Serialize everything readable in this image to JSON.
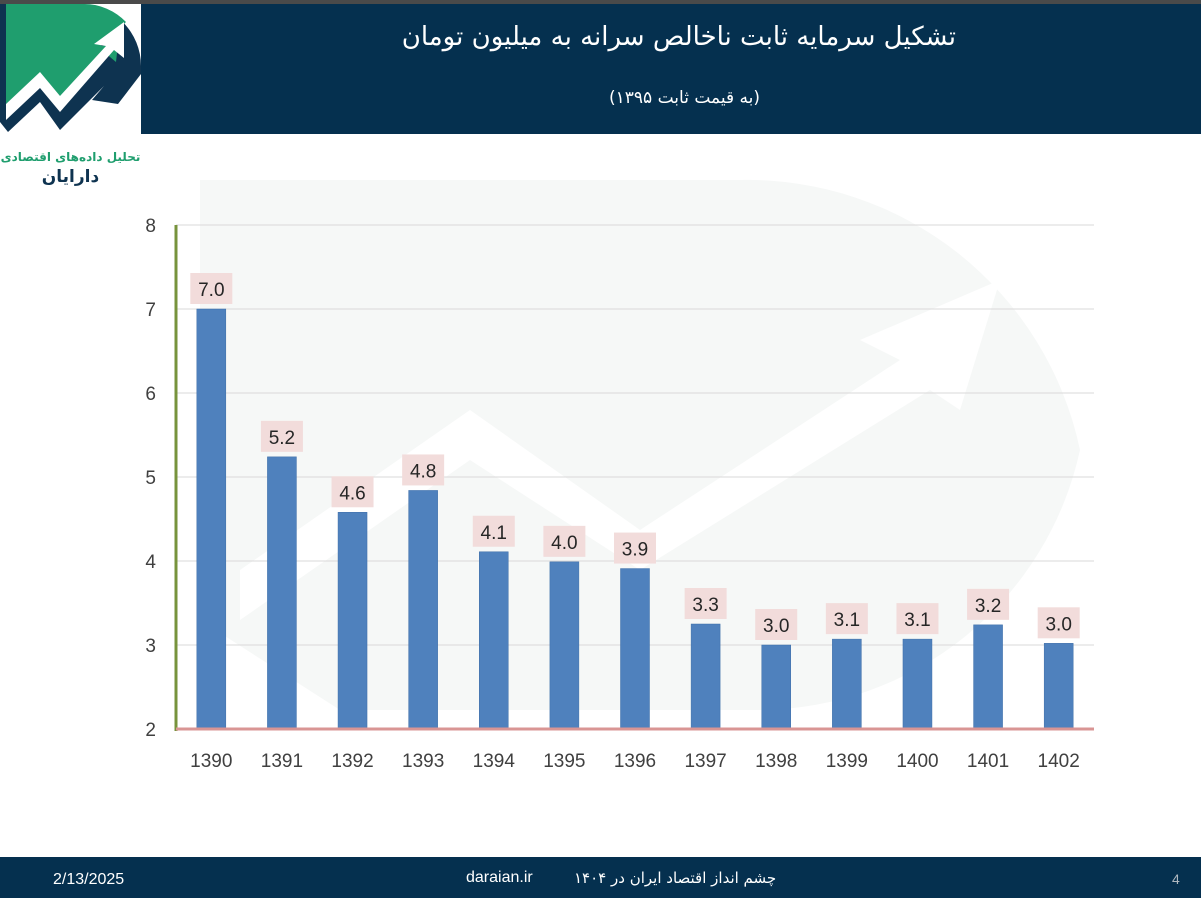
{
  "header": {
    "title": "تشکیل سرمایه ثابت ناخالص سرانه به میلیون تومان",
    "subtitle": "(به قیمت ثابت ۱۳۹۵)"
  },
  "logo": {
    "line1": "تحلیل داده‌های اقتصادی",
    "line2": "دارایان"
  },
  "footer": {
    "date": "2/13/2025",
    "site": "daraian.ir",
    "caption": "چشم انداز اقتصاد ایران  در ۱۴۰۴",
    "page": "4"
  },
  "colors": {
    "header_bg": "#05304f",
    "bar": "#4f81bd",
    "label_bg": "#f2dcdb",
    "y_axis": "#77933c",
    "x_axis": "#d99594",
    "logo_green": "#1f9e6e",
    "logo_navy": "#0e3350"
  },
  "chart_data": {
    "type": "bar",
    "title": "تشکیل سرمایه ثابت ناخالص سرانه به میلیون تومان",
    "subtitle": "(به قیمت ثابت ۱۳۹۵)",
    "categories": [
      "1390",
      "1391",
      "1392",
      "1393",
      "1394",
      "1395",
      "1396",
      "1397",
      "1398",
      "1399",
      "1400",
      "1401",
      "1402"
    ],
    "values": [
      7.0,
      5.24,
      4.58,
      4.84,
      4.11,
      3.99,
      3.91,
      3.25,
      3.0,
      3.07,
      3.07,
      3.24,
      3.02
    ],
    "labels": [
      "7.0",
      "5.2",
      "4.6",
      "4.8",
      "4.1",
      "4.0",
      "3.9",
      "3.3",
      "3.0",
      "3.1",
      "3.1",
      "3.2",
      "3.0"
    ],
    "yticks": [
      "2",
      "3",
      "4",
      "5",
      "6",
      "7",
      "8"
    ],
    "ylim": [
      2,
      8
    ],
    "grid": true,
    "legend": "none"
  }
}
